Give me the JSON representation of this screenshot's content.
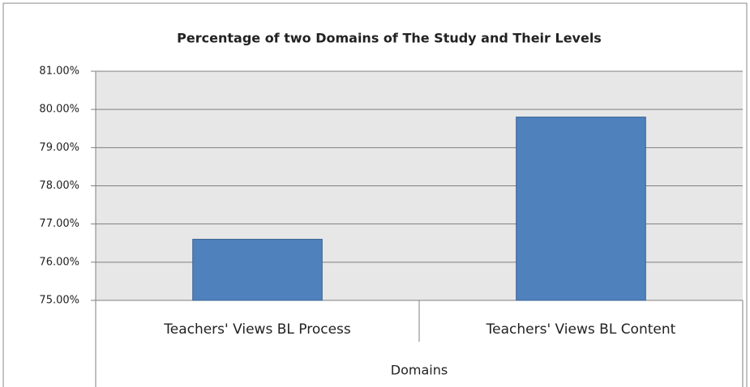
{
  "chart_data": {
    "type": "bar",
    "title": "Percentage of two Domains of The Study and  Their Levels",
    "x_label": "Domains",
    "categories": [
      "Teachers' Views BL Process",
      "Teachers' Views BL Content"
    ],
    "values": [
      76.6,
      79.8
    ],
    "color": "#4f81bd",
    "ylim": [
      75,
      81
    ],
    "yticks": [
      {
        "value": 75,
        "label": "75.00%"
      },
      {
        "value": 76,
        "label": "76.00%"
      },
      {
        "value": 77,
        "label": "77.00%"
      },
      {
        "value": 78,
        "label": "78.00%"
      },
      {
        "value": 79,
        "label": "79.00%"
      },
      {
        "value": 80,
        "label": "80.00%"
      },
      {
        "value": 81,
        "label": "81.00%"
      }
    ],
    "grid": true
  }
}
